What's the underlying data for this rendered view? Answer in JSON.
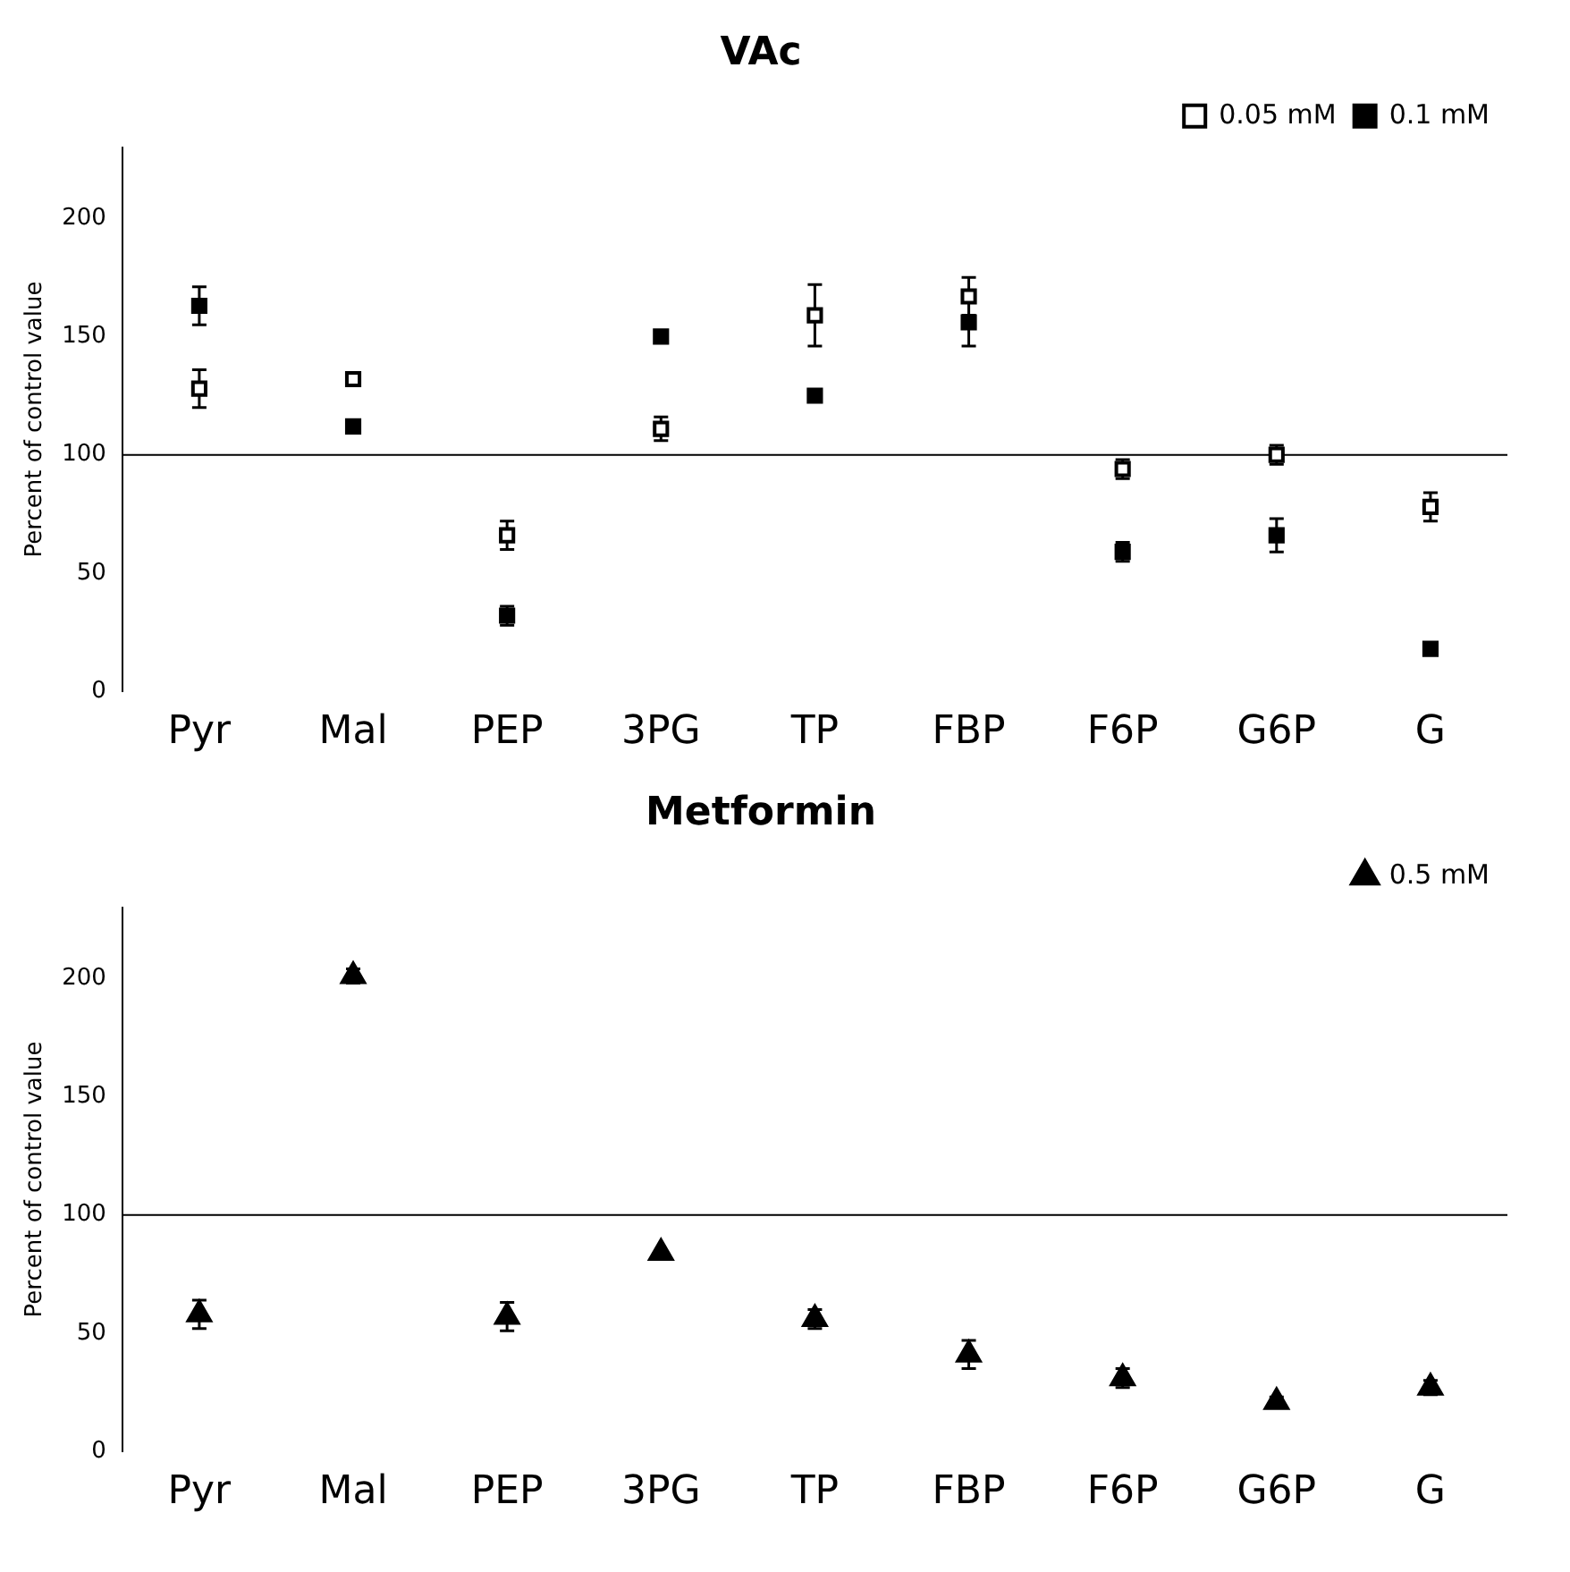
{
  "chart_data": [
    {
      "type": "scatter",
      "title": "VAc",
      "ylabel": "Percent of control value",
      "categories": [
        "Pyr",
        "Mal",
        "PEP",
        "3PG",
        "TP",
        "FBP",
        "F6P",
        "G6P",
        "G"
      ],
      "ylim": [
        0,
        230
      ],
      "yticks": [
        0,
        50,
        100,
        150,
        200
      ],
      "grid": false,
      "legend": "top right",
      "marker": "square",
      "series": [
        {
          "name": "0.05 mM",
          "color": "#ffffff",
          "values": [
            128,
            132,
            66,
            111,
            159,
            167,
            94,
            100,
            78
          ],
          "errors": [
            8,
            null,
            6,
            5,
            13,
            8,
            4,
            4,
            6
          ]
        },
        {
          "name": "0.1 mM",
          "color": "#000000",
          "values": [
            163,
            112,
            32,
            150,
            125,
            156,
            59,
            66,
            18
          ],
          "errors": [
            8,
            null,
            4,
            null,
            null,
            10,
            4,
            7,
            null
          ]
        }
      ],
      "ref_lines": [
        {
          "axis": "y",
          "value": 100,
          "color": "#000000"
        }
      ]
    },
    {
      "type": "scatter",
      "title": "Metformin",
      "ylabel": "Percent of control value",
      "categories": [
        "Pyr",
        "Mal",
        "PEP",
        "3PG",
        "TP",
        "FBP",
        "F6P",
        "G6P",
        "G"
      ],
      "ylim": [
        0,
        230
      ],
      "yticks": [
        0,
        50,
        100,
        150,
        200
      ],
      "grid": false,
      "legend": "top right",
      "marker": "triangle",
      "series": [
        {
          "name": "0.5 mM",
          "color": "#000000",
          "values": [
            58,
            201,
            57,
            84,
            56,
            41,
            31,
            21,
            27
          ],
          "errors": [
            6,
            3,
            6,
            null,
            4,
            6,
            4,
            2,
            3
          ]
        }
      ],
      "ref_lines": [
        {
          "axis": "y",
          "value": 100,
          "color": "#000000"
        }
      ]
    }
  ]
}
